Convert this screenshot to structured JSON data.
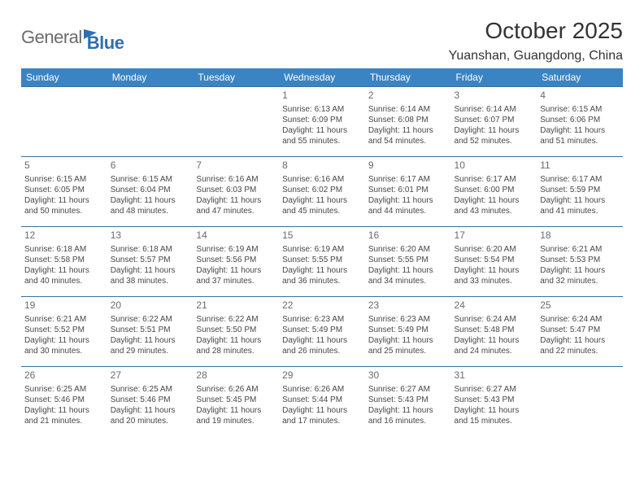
{
  "logo": {
    "text_gray": "General",
    "text_blue": "Blue"
  },
  "title": "October 2025",
  "location": "Yuanshan, Guangdong, China",
  "colors": {
    "header_bg": "#3b84c4",
    "header_text": "#ffffff",
    "row_border": "#3b6f9e",
    "logo_gray": "#6b6b6b",
    "logo_blue": "#2f6fb0",
    "body_text": "#474747"
  },
  "weekdays": [
    "Sunday",
    "Monday",
    "Tuesday",
    "Wednesday",
    "Thursday",
    "Friday",
    "Saturday"
  ],
  "days": {
    "1": {
      "sunrise": "6:13 AM",
      "sunset": "6:09 PM",
      "daylight": "11 hours and 55 minutes."
    },
    "2": {
      "sunrise": "6:14 AM",
      "sunset": "6:08 PM",
      "daylight": "11 hours and 54 minutes."
    },
    "3": {
      "sunrise": "6:14 AM",
      "sunset": "6:07 PM",
      "daylight": "11 hours and 52 minutes."
    },
    "4": {
      "sunrise": "6:15 AM",
      "sunset": "6:06 PM",
      "daylight": "11 hours and 51 minutes."
    },
    "5": {
      "sunrise": "6:15 AM",
      "sunset": "6:05 PM",
      "daylight": "11 hours and 50 minutes."
    },
    "6": {
      "sunrise": "6:15 AM",
      "sunset": "6:04 PM",
      "daylight": "11 hours and 48 minutes."
    },
    "7": {
      "sunrise": "6:16 AM",
      "sunset": "6:03 PM",
      "daylight": "11 hours and 47 minutes."
    },
    "8": {
      "sunrise": "6:16 AM",
      "sunset": "6:02 PM",
      "daylight": "11 hours and 45 minutes."
    },
    "9": {
      "sunrise": "6:17 AM",
      "sunset": "6:01 PM",
      "daylight": "11 hours and 44 minutes."
    },
    "10": {
      "sunrise": "6:17 AM",
      "sunset": "6:00 PM",
      "daylight": "11 hours and 43 minutes."
    },
    "11": {
      "sunrise": "6:17 AM",
      "sunset": "5:59 PM",
      "daylight": "11 hours and 41 minutes."
    },
    "12": {
      "sunrise": "6:18 AM",
      "sunset": "5:58 PM",
      "daylight": "11 hours and 40 minutes."
    },
    "13": {
      "sunrise": "6:18 AM",
      "sunset": "5:57 PM",
      "daylight": "11 hours and 38 minutes."
    },
    "14": {
      "sunrise": "6:19 AM",
      "sunset": "5:56 PM",
      "daylight": "11 hours and 37 minutes."
    },
    "15": {
      "sunrise": "6:19 AM",
      "sunset": "5:55 PM",
      "daylight": "11 hours and 36 minutes."
    },
    "16": {
      "sunrise": "6:20 AM",
      "sunset": "5:55 PM",
      "daylight": "11 hours and 34 minutes."
    },
    "17": {
      "sunrise": "6:20 AM",
      "sunset": "5:54 PM",
      "daylight": "11 hours and 33 minutes."
    },
    "18": {
      "sunrise": "6:21 AM",
      "sunset": "5:53 PM",
      "daylight": "11 hours and 32 minutes."
    },
    "19": {
      "sunrise": "6:21 AM",
      "sunset": "5:52 PM",
      "daylight": "11 hours and 30 minutes."
    },
    "20": {
      "sunrise": "6:22 AM",
      "sunset": "5:51 PM",
      "daylight": "11 hours and 29 minutes."
    },
    "21": {
      "sunrise": "6:22 AM",
      "sunset": "5:50 PM",
      "daylight": "11 hours and 28 minutes."
    },
    "22": {
      "sunrise": "6:23 AM",
      "sunset": "5:49 PM",
      "daylight": "11 hours and 26 minutes."
    },
    "23": {
      "sunrise": "6:23 AM",
      "sunset": "5:49 PM",
      "daylight": "11 hours and 25 minutes."
    },
    "24": {
      "sunrise": "6:24 AM",
      "sunset": "5:48 PM",
      "daylight": "11 hours and 24 minutes."
    },
    "25": {
      "sunrise": "6:24 AM",
      "sunset": "5:47 PM",
      "daylight": "11 hours and 22 minutes."
    },
    "26": {
      "sunrise": "6:25 AM",
      "sunset": "5:46 PM",
      "daylight": "11 hours and 21 minutes."
    },
    "27": {
      "sunrise": "6:25 AM",
      "sunset": "5:46 PM",
      "daylight": "11 hours and 20 minutes."
    },
    "28": {
      "sunrise": "6:26 AM",
      "sunset": "5:45 PM",
      "daylight": "11 hours and 19 minutes."
    },
    "29": {
      "sunrise": "6:26 AM",
      "sunset": "5:44 PM",
      "daylight": "11 hours and 17 minutes."
    },
    "30": {
      "sunrise": "6:27 AM",
      "sunset": "5:43 PM",
      "daylight": "11 hours and 16 minutes."
    },
    "31": {
      "sunrise": "6:27 AM",
      "sunset": "5:43 PM",
      "daylight": "11 hours and 15 minutes."
    }
  },
  "labels": {
    "sunrise": "Sunrise:",
    "sunset": "Sunset:",
    "daylight": "Daylight:"
  },
  "grid": [
    [
      null,
      null,
      null,
      "1",
      "2",
      "3",
      "4"
    ],
    [
      "5",
      "6",
      "7",
      "8",
      "9",
      "10",
      "11"
    ],
    [
      "12",
      "13",
      "14",
      "15",
      "16",
      "17",
      "18"
    ],
    [
      "19",
      "20",
      "21",
      "22",
      "23",
      "24",
      "25"
    ],
    [
      "26",
      "27",
      "28",
      "29",
      "30",
      "31",
      null
    ]
  ]
}
